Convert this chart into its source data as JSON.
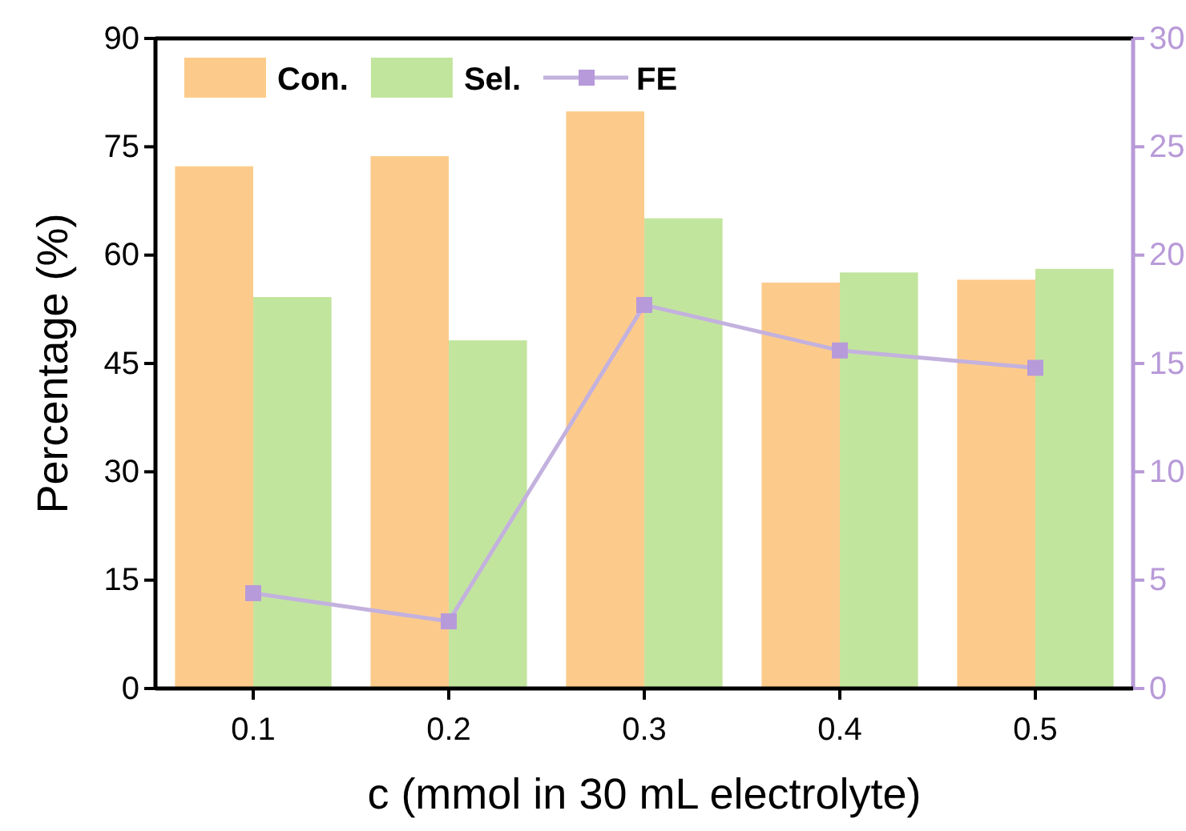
{
  "chart_data": {
    "type": "bar",
    "xlabel": "c (mmol in 30 mL electrolyte)",
    "ylabel": "Percentage (%)",
    "categories": [
      "0.1",
      "0.2",
      "0.3",
      "0.4",
      "0.5"
    ],
    "series": [
      {
        "name": "Con.",
        "color": "#fccb8b",
        "values": [
          72.3,
          73.7,
          79.9,
          56.2,
          56.6
        ]
      },
      {
        "name": "Sel.",
        "color": "#c2e59e",
        "values": [
          54.2,
          48.2,
          65.1,
          57.6,
          58.1
        ]
      },
      {
        "name": "FE",
        "type": "line",
        "axis": "y2",
        "color": "#c3b1de",
        "marker": "square",
        "values": [
          4.4,
          3.1,
          17.7,
          15.6,
          14.8
        ]
      }
    ],
    "ylim": [
      0,
      90
    ],
    "yticks": [
      0,
      15,
      30,
      45,
      60,
      75,
      90
    ],
    "y2lim": [
      0,
      30
    ],
    "y2ticks": [
      0,
      5,
      10,
      15,
      20,
      25,
      30
    ],
    "grid": false,
    "legend": "top left"
  }
}
